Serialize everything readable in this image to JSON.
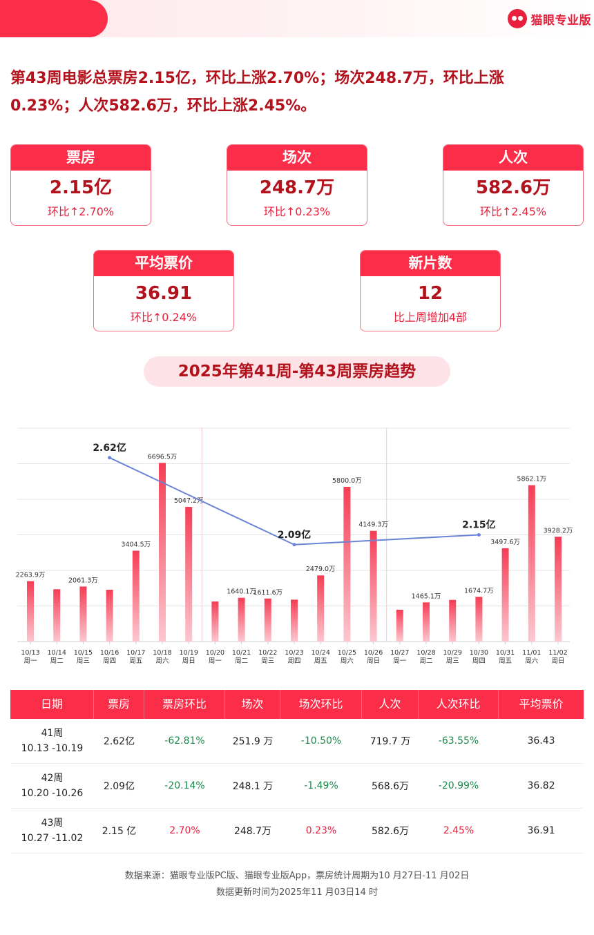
{
  "brand": {
    "name": "猫眼专业版"
  },
  "headline": {
    "line1": "第43周电影总票房2.15亿，环比上涨2.70%；场次248.7万，环比上涨",
    "line2": "0.23%；人次582.6万，环比上涨2.45%。"
  },
  "cards": [
    {
      "title": "票房",
      "value": "2.15亿",
      "sub": "环比↑2.70%"
    },
    {
      "title": "场次",
      "value": "248.7万",
      "sub": "环比↑0.23%"
    },
    {
      "title": "人次",
      "value": "582.6万",
      "sub": "环比↑2.45%"
    },
    {
      "title": "平均票价",
      "value": "36.91",
      "sub": "环比↑0.24%"
    },
    {
      "title": "新片数",
      "value": "12",
      "sub": "比上周增加4部"
    }
  ],
  "trend_title": "2025年第41周-第43周票房趋势",
  "chart_data": {
    "type": "bar",
    "categories": [
      "10/13",
      "10/14",
      "10/15",
      "10/16",
      "10/17",
      "10/18",
      "10/19",
      "10/20",
      "10/21",
      "10/22",
      "10/23",
      "10/24",
      "10/25",
      "10/26",
      "10/27",
      "10/28",
      "10/29",
      "10/30",
      "10/31",
      "11/01",
      "11/02"
    ],
    "weekdays": [
      "周一",
      "周二",
      "周三",
      "周四",
      "周五",
      "周六",
      "周日",
      "周一",
      "周二",
      "周三",
      "周四",
      "周五",
      "周六",
      "周日",
      "周一",
      "周二",
      "周三",
      "周四",
      "周五",
      "周六",
      "周日"
    ],
    "values": [
      2263.9,
      1960,
      2061.3,
      1940,
      3404.5,
      6696.5,
      5047.2,
      1500,
      1640.1,
      1611.6,
      1570,
      2479.0,
      5800.0,
      4149.3,
      1190,
      1465.1,
      1560,
      1674.7,
      3497.6,
      5862.1,
      3928.2
    ],
    "labels": [
      "2263.9万",
      "",
      "2061.3万",
      "",
      "3404.5万",
      "6696.5万",
      "5047.2万",
      "",
      "1640.1万",
      "1611.6万",
      "",
      "2479.0万",
      "5800.0万",
      "4149.3万",
      "",
      "1465.1万",
      "",
      "1674.7万",
      "3497.6万",
      "5862.1万",
      "3928.2万"
    ],
    "unit": "万",
    "ylim": [
      0,
      8000
    ],
    "grid": true,
    "weekly_line": {
      "points": [
        {
          "x": "10/16",
          "value": 2.62,
          "label": "2.62亿"
        },
        {
          "x": "10/23",
          "value": 2.09,
          "label": "2.09亿"
        },
        {
          "x": "10/30",
          "value": 2.15,
          "label": "2.15亿"
        }
      ],
      "ylim": [
        1.5,
        2.8
      ]
    },
    "colors": {
      "bar_top": "#f53d55",
      "bar_bottom": "#fcc7cf",
      "line": "#6a84d8",
      "grid": "#e4e4e4",
      "week_divider": "#f7c6cd"
    }
  },
  "table": {
    "headers": [
      "日期",
      "票房",
      "票房环比",
      "场次",
      "场次环比",
      "人次",
      "人次环比",
      "平均票价"
    ],
    "rows": [
      {
        "week": "41周",
        "range": "10.13 -10.19",
        "box": "2.62亿",
        "box_change": "-62.81%",
        "shows": "251.9 万",
        "shows_change": "-10.50%",
        "people": "719.7 万",
        "people_change": "-63.55%",
        "price": "36.43",
        "trend": "neg"
      },
      {
        "week": "42周",
        "range": "10.20 -10.26",
        "box": "2.09亿",
        "box_change": "-20.14%",
        "shows": "248.1 万",
        "shows_change": "-1.49%",
        "people": "568.6万",
        "people_change": "-20.99%",
        "price": "36.82",
        "trend": "neg"
      },
      {
        "week": "43周",
        "range": "10.27 -11.02",
        "box": "2.15 亿",
        "box_change": "2.70%",
        "shows": "248.7万",
        "shows_change": "0.23%",
        "people": "582.6万",
        "people_change": "2.45%",
        "price": "36.91",
        "trend": "pos"
      }
    ]
  },
  "footer": {
    "line1": "数据来源：猫眼专业版PC版、猫眼专业版App，票房统计周期为10 月27日-11 月02日",
    "line2": "数据更新时间为2025年11 月03日14 时"
  }
}
